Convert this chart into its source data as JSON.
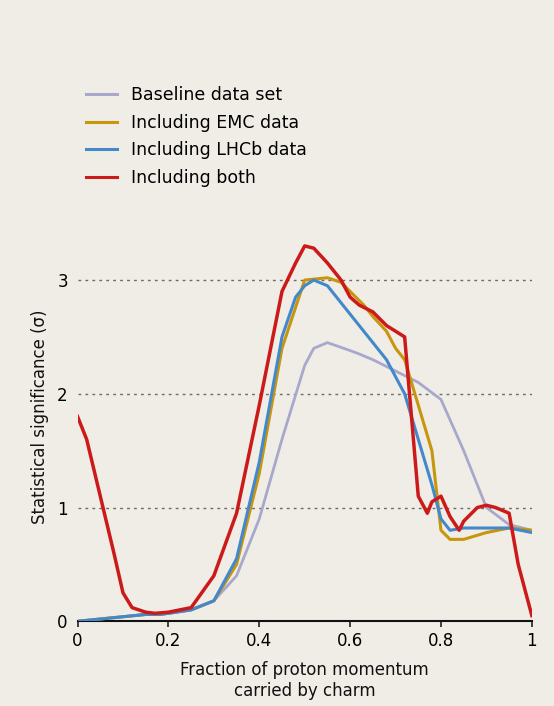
{
  "background_color": "#f0ede6",
  "xlabel": "Fraction of proton momentum\ncarried by charm",
  "ylabel": "Statistical significance (σ)",
  "xlim": [
    0,
    1.0
  ],
  "ylim": [
    0,
    3.6
  ],
  "yticks": [
    0,
    1,
    2,
    3
  ],
  "xticks": [
    0,
    0.2,
    0.4,
    0.6,
    0.8,
    1.0
  ],
  "legend_labels": [
    "Baseline data set",
    "Including EMC data",
    "Including LHCb data",
    "Including both"
  ],
  "legend_colors": [
    "#a8a8cc",
    "#c8960c",
    "#4488cc",
    "#cc1a1a"
  ],
  "baseline": {
    "x": [
      0.0,
      0.05,
      0.1,
      0.15,
      0.18,
      0.2,
      0.25,
      0.3,
      0.35,
      0.4,
      0.45,
      0.5,
      0.52,
      0.55,
      0.6,
      0.62,
      0.65,
      0.7,
      0.75,
      0.8,
      0.85,
      0.9,
      0.95,
      1.0
    ],
    "y": [
      0.0,
      0.02,
      0.04,
      0.06,
      0.06,
      0.07,
      0.1,
      0.18,
      0.4,
      0.9,
      1.6,
      2.25,
      2.4,
      2.45,
      2.38,
      2.35,
      2.3,
      2.2,
      2.1,
      1.95,
      1.5,
      1.0,
      0.85,
      0.8
    ]
  },
  "emc": {
    "x": [
      0.0,
      0.05,
      0.1,
      0.15,
      0.18,
      0.2,
      0.25,
      0.3,
      0.35,
      0.4,
      0.45,
      0.5,
      0.55,
      0.58,
      0.6,
      0.63,
      0.65,
      0.68,
      0.7,
      0.72,
      0.75,
      0.78,
      0.8,
      0.82,
      0.85,
      0.9,
      0.95,
      1.0
    ],
    "y": [
      0.0,
      0.02,
      0.04,
      0.06,
      0.06,
      0.07,
      0.1,
      0.18,
      0.5,
      1.3,
      2.4,
      3.0,
      3.02,
      2.98,
      2.9,
      2.78,
      2.68,
      2.55,
      2.4,
      2.3,
      1.9,
      1.5,
      0.8,
      0.72,
      0.72,
      0.78,
      0.82,
      0.8
    ]
  },
  "lhcb": {
    "x": [
      0.0,
      0.05,
      0.1,
      0.15,
      0.18,
      0.2,
      0.25,
      0.3,
      0.35,
      0.4,
      0.45,
      0.48,
      0.5,
      0.52,
      0.55,
      0.58,
      0.6,
      0.62,
      0.65,
      0.68,
      0.7,
      0.72,
      0.75,
      0.78,
      0.8,
      0.82,
      0.85,
      0.88,
      0.9,
      0.95,
      1.0
    ],
    "y": [
      0.0,
      0.02,
      0.04,
      0.06,
      0.06,
      0.07,
      0.1,
      0.18,
      0.55,
      1.4,
      2.5,
      2.85,
      2.95,
      3.0,
      2.95,
      2.8,
      2.7,
      2.6,
      2.45,
      2.3,
      2.15,
      2.0,
      1.6,
      1.2,
      0.9,
      0.8,
      0.82,
      0.82,
      0.82,
      0.82,
      0.78
    ]
  },
  "both": {
    "x": [
      0.0,
      0.02,
      0.05,
      0.08,
      0.1,
      0.12,
      0.15,
      0.17,
      0.2,
      0.25,
      0.3,
      0.35,
      0.4,
      0.45,
      0.48,
      0.5,
      0.52,
      0.55,
      0.58,
      0.6,
      0.62,
      0.65,
      0.68,
      0.7,
      0.72,
      0.75,
      0.77,
      0.78,
      0.8,
      0.82,
      0.84,
      0.85,
      0.88,
      0.9,
      0.92,
      0.95,
      0.97,
      1.0
    ],
    "y": [
      1.8,
      1.6,
      1.1,
      0.6,
      0.25,
      0.12,
      0.08,
      0.07,
      0.08,
      0.12,
      0.4,
      0.95,
      1.9,
      2.9,
      3.15,
      3.3,
      3.28,
      3.15,
      3.0,
      2.85,
      2.78,
      2.72,
      2.6,
      2.55,
      2.5,
      1.1,
      0.95,
      1.05,
      1.1,
      0.92,
      0.8,
      0.88,
      1.0,
      1.02,
      1.0,
      0.95,
      0.5,
      0.05
    ]
  }
}
